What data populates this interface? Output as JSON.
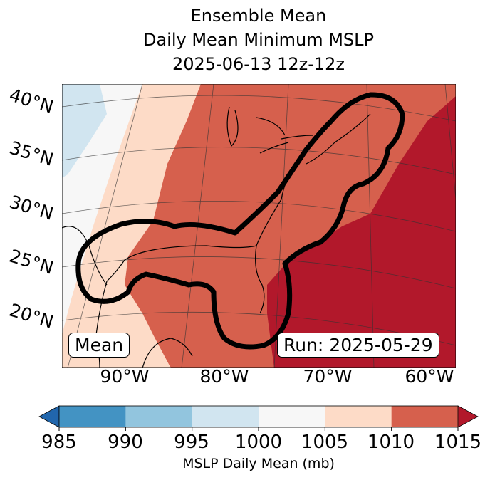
{
  "title": {
    "line1": "Ensemble Mean",
    "line2": "Daily Mean Minimum MSLP",
    "line3": "2025-06-13 12z-12z"
  },
  "map": {
    "lat_labels": [
      "40°N",
      "35°N",
      "30°N",
      "25°N",
      "20°N"
    ],
    "lon_labels": [
      "90°W",
      "80°W",
      "70°W",
      "60°W"
    ],
    "mean_label": "Mean",
    "run_label": "Run: 2025-05-29"
  },
  "colorbar": {
    "label": "MSLP Daily Mean (mb)",
    "ticks": [
      "985",
      "990",
      "995",
      "1000",
      "1005",
      "1010",
      "1015"
    ],
    "colors": [
      "#4393c3",
      "#92c5de",
      "#d1e5f0",
      "#f7f7f7",
      "#fddbc7",
      "#d6604d"
    ],
    "under_color": "#2166ac",
    "over_color": "#b2182b"
  }
}
